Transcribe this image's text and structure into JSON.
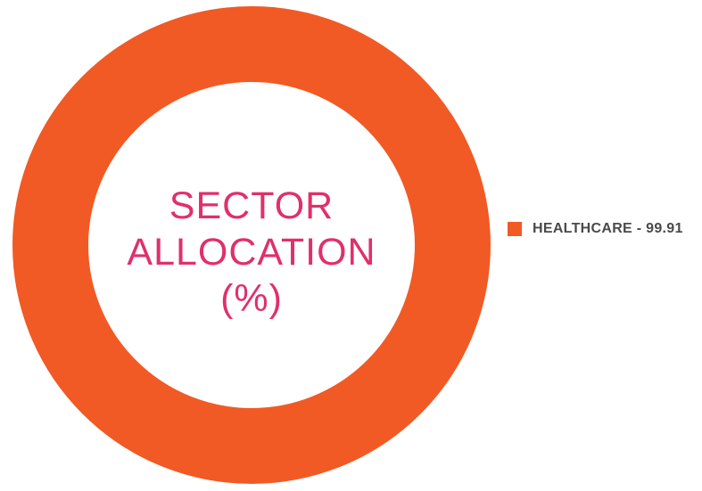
{
  "chart_data": {
    "type": "pie",
    "variant": "donut",
    "title": "SECTOR ALLOCATION (%)",
    "title_lines": [
      "SECTOR",
      "ALLOCATION",
      "(%)"
    ],
    "slices": [
      {
        "label": "HEALTHCARE",
        "value": 99.91,
        "color": "#f15a24",
        "legend_text": "HEALTHCARE - 99.91"
      }
    ],
    "total": 100,
    "legend_position": "right"
  },
  "colors": {
    "title": "#e0306a",
    "legend_text": "#4a4a4a"
  }
}
